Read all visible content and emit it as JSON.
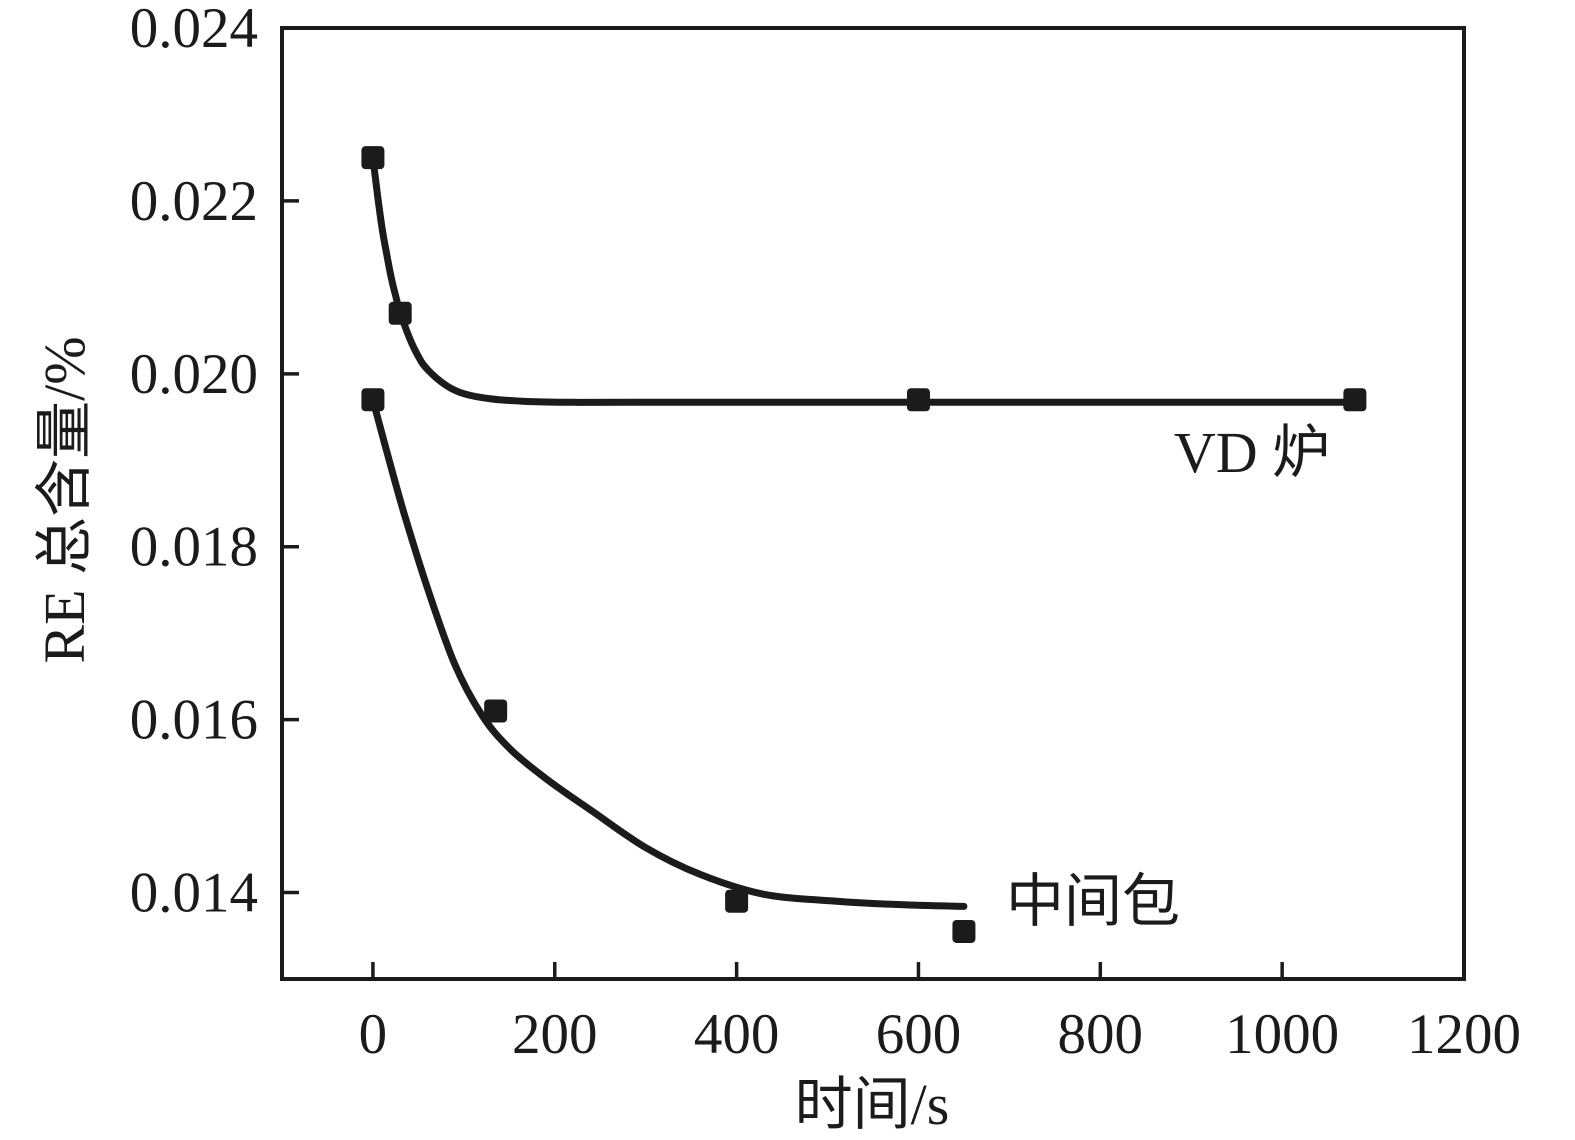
{
  "figure": {
    "background": "#ffffff",
    "ink_color": "#1b1b1b"
  },
  "chart_data": {
    "type": "scatter",
    "title": "",
    "xlabel": "时间/s",
    "ylabel": "RE 总含量/%",
    "grid": false,
    "legend_position": "inline-annotations",
    "x_axis": {
      "min": -100,
      "max": 1200,
      "ticks": [
        0,
        200,
        400,
        600,
        800,
        1000,
        1200
      ],
      "tick_labels": [
        "0",
        "200",
        "400",
        "600",
        "800",
        "1000",
        "1200"
      ]
    },
    "y_axis": {
      "min": 0.013,
      "max": 0.024,
      "ticks": [
        0.014,
        0.016,
        0.018,
        0.02,
        0.022,
        0.024
      ],
      "tick_labels": [
        "0.014",
        "0.016",
        "0.018",
        "0.020",
        "0.022",
        "0.024"
      ]
    },
    "series": [
      {
        "name": "VD 炉",
        "marker": "filled-square",
        "points": [
          [
            0,
            0.0225
          ],
          [
            30,
            0.0207
          ],
          [
            600,
            0.0197
          ],
          [
            1080,
            0.0197
          ]
        ],
        "fit_curve_points": [
          [
            0,
            0.0225
          ],
          [
            5,
            0.02207
          ],
          [
            10,
            0.02169
          ],
          [
            15,
            0.02139
          ],
          [
            20,
            0.02112
          ],
          [
            25,
            0.0209
          ],
          [
            30,
            0.02071
          ],
          [
            40,
            0.02042
          ],
          [
            50,
            0.0202
          ],
          [
            60,
            0.02005
          ],
          [
            80,
            0.01987
          ],
          [
            100,
            0.01977
          ],
          [
            130,
            0.01971
          ],
          [
            170,
            0.01968
          ],
          [
            220,
            0.01967
          ],
          [
            300,
            0.01967
          ],
          [
            450,
            0.01967
          ],
          [
            700,
            0.01967
          ],
          [
            900,
            0.01967
          ],
          [
            1080,
            0.01967
          ]
        ]
      },
      {
        "name": "中间包",
        "marker": "filled-square",
        "points": [
          [
            0,
            0.0197
          ],
          [
            135,
            0.0161
          ],
          [
            400,
            0.0139
          ],
          [
            650,
            0.01355
          ]
        ],
        "fit_curve_points": [
          [
            0,
            0.0197
          ],
          [
            15,
            0.01911
          ],
          [
            35,
            0.01836
          ],
          [
            60,
            0.01752
          ],
          [
            90,
            0.01664
          ],
          [
            120,
            0.01605
          ],
          [
            150,
            0.01567
          ],
          [
            190,
            0.01532
          ],
          [
            240,
            0.01495
          ],
          [
            300,
            0.01452
          ],
          [
            360,
            0.01421
          ],
          [
            430,
            0.01398
          ],
          [
            510,
            0.0139
          ],
          [
            580,
            0.01386
          ],
          [
            650,
            0.01384
          ]
        ]
      }
    ]
  }
}
